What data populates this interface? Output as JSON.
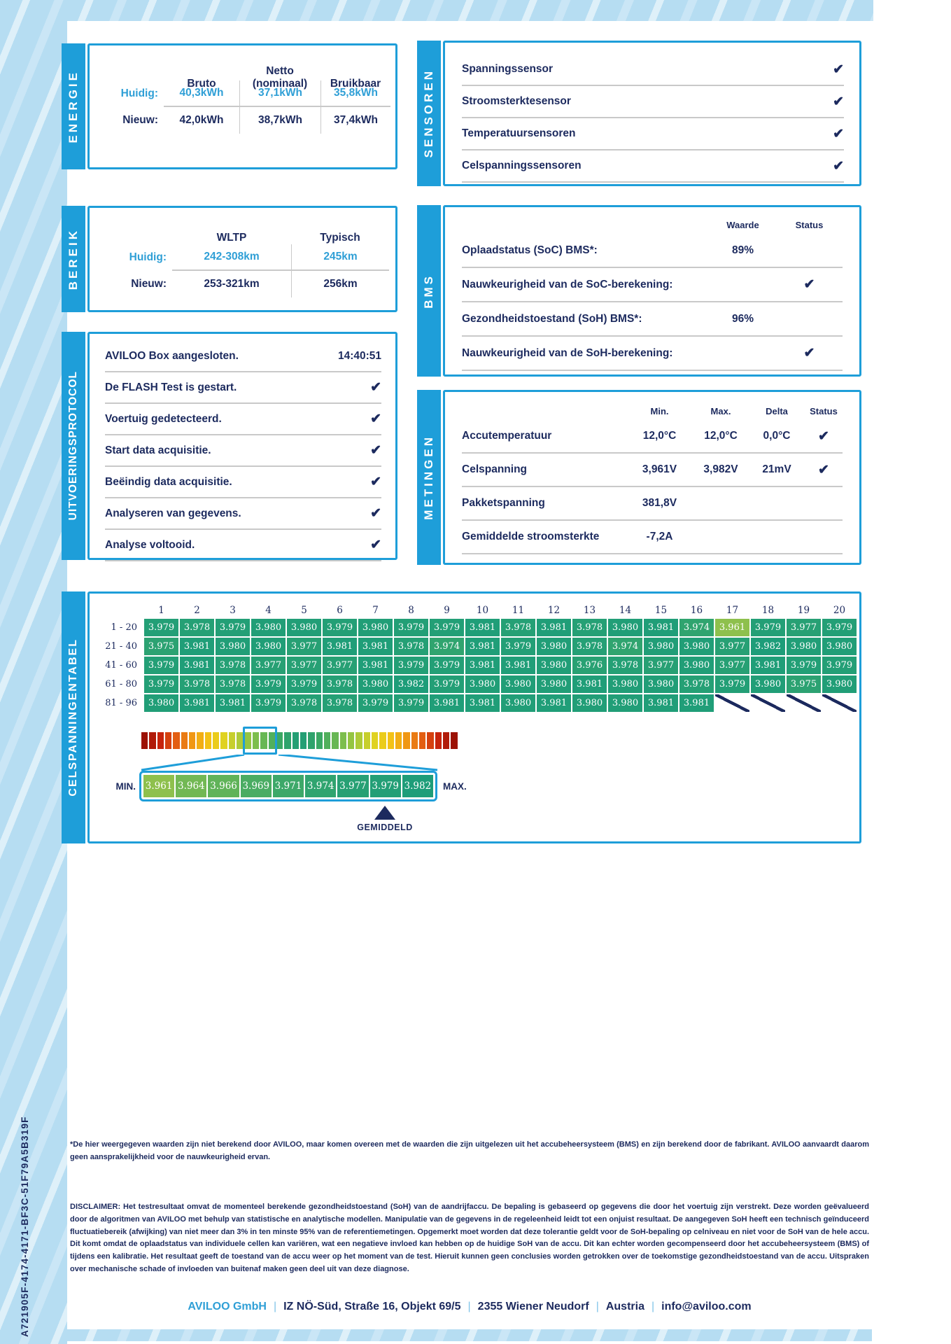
{
  "page": {
    "report_id": "A721905F-4174-4171-BF3C-51F79A5B319F",
    "glyphs": {
      "check": "✔"
    },
    "colors": {
      "accent_blue": "#1e9ed9",
      "navy_text": "#1c2a5e",
      "value_blue": "#2f9fd6",
      "light_blue_band": "#b6ddf2",
      "cell_green_low": "#8ec04d",
      "cell_green_high": "#1e9d79",
      "gradient_end_red": "#9c1205"
    },
    "energie": {
      "tab": "ENERGIE",
      "headers": [
        "Bruto",
        "Netto\n(nominaal)",
        "Bruikbaar"
      ],
      "rows": [
        {
          "label": "Huidig:",
          "values": [
            "40,3kWh",
            "37,1kWh",
            "35,8kWh"
          ]
        },
        {
          "label": "Nieuw:",
          "values": [
            "42,0kWh",
            "38,7kWh",
            "37,4kWh"
          ]
        }
      ]
    },
    "bereik": {
      "tab": "BEREIK",
      "headers": [
        "WLTP",
        "Typisch"
      ],
      "rows": [
        {
          "label": "Huidig:",
          "values": [
            "242-308km",
            "245km"
          ]
        },
        {
          "label": "Nieuw:",
          "values": [
            "253-321km",
            "256km"
          ]
        }
      ]
    },
    "protocol": {
      "tab": "UITVOERINGSPROTOCOL",
      "items": [
        {
          "label": "AVILOO Box aangesloten.",
          "time": "14:40:51"
        },
        {
          "label": "De FLASH Test is gestart.",
          "check": true
        },
        {
          "label": "Voertuig gedetecteerd.",
          "check": true
        },
        {
          "label": "Start data acquisitie.",
          "check": true
        },
        {
          "label": "Beëindig data acquisitie.",
          "check": true
        },
        {
          "label": "Analyseren van gegevens.",
          "check": true
        },
        {
          "label": "Analyse voltooid.",
          "check": true
        }
      ]
    },
    "sensoren": {
      "tab": "SENSOREN",
      "items": [
        {
          "label": "Spanningssensor",
          "check": true
        },
        {
          "label": "Stroomsterktesensor",
          "check": true
        },
        {
          "label": "Temperatuursensoren",
          "check": true
        },
        {
          "label": "Celspanningssensoren",
          "check": true
        }
      ]
    },
    "bms": {
      "tab": "BMS",
      "headers": {
        "waarde": "Waarde",
        "status": "Status"
      },
      "rows": [
        {
          "label": "Oplaadstatus (SoC) BMS*:",
          "waarde": "89%"
        },
        {
          "label": "Nauwkeurigheid van de SoC-berekening:",
          "check": true
        },
        {
          "label": "Gezondheidstoestand (SoH) BMS*:",
          "waarde": "96%"
        },
        {
          "label": "Nauwkeurigheid van de SoH-berekening:",
          "check": true
        }
      ]
    },
    "metingen": {
      "tab": "METINGEN",
      "headers": [
        "Min.",
        "Max.",
        "Delta",
        "Status"
      ],
      "rows": [
        {
          "label": "Accutemperatuur",
          "min": "12,0°C",
          "max": "12,0°C",
          "delta": "0,0°C",
          "check": true
        },
        {
          "label": "Celspanning",
          "min": "3,961V",
          "max": "3,982V",
          "delta": "21mV",
          "check": true
        },
        {
          "label": "Pakketspanning",
          "min": "381,8V"
        },
        {
          "label": "Gemiddelde stroomsterkte",
          "min": "-7,2A"
        }
      ]
    },
    "celtabel": {
      "tab": "CELSPANNINGENTABEL",
      "columns": [
        "1",
        "2",
        "3",
        "4",
        "5",
        "6",
        "7",
        "8",
        "9",
        "10",
        "11",
        "12",
        "13",
        "14",
        "15",
        "16",
        "17",
        "18",
        "19",
        "20"
      ],
      "voltage_min": 3.961,
      "voltage_max": 3.982,
      "rows": [
        {
          "label": "1 - 20",
          "values": [
            "3.979",
            "3.978",
            "3.979",
            "3.980",
            "3.980",
            "3.979",
            "3.980",
            "3.979",
            "3.979",
            "3.981",
            "3.978",
            "3.981",
            "3.978",
            "3.980",
            "3.981",
            "3.974",
            "3.961",
            "3.979",
            "3.977",
            "3.979"
          ]
        },
        {
          "label": "21 - 40",
          "values": [
            "3.975",
            "3.981",
            "3.980",
            "3.980",
            "3.977",
            "3.981",
            "3.981",
            "3.978",
            "3.974",
            "3.981",
            "3.979",
            "3.980",
            "3.978",
            "3.974",
            "3.980",
            "3.980",
            "3.977",
            "3.982",
            "3.980",
            "3.980"
          ]
        },
        {
          "label": "41 - 60",
          "values": [
            "3.979",
            "3.981",
            "3.978",
            "3.977",
            "3.977",
            "3.977",
            "3.981",
            "3.979",
            "3.979",
            "3.981",
            "3.981",
            "3.980",
            "3.976",
            "3.978",
            "3.977",
            "3.980",
            "3.977",
            "3.981",
            "3.979",
            "3.979"
          ]
        },
        {
          "label": "61 - 80",
          "values": [
            "3.979",
            "3.978",
            "3.978",
            "3.979",
            "3.979",
            "3.978",
            "3.980",
            "3.982",
            "3.979",
            "3.980",
            "3.980",
            "3.980",
            "3.981",
            "3.980",
            "3.980",
            "3.978",
            "3.979",
            "3.980",
            "3.975",
            "3.980"
          ]
        },
        {
          "label": "81 - 96",
          "values": [
            "3.980",
            "3.981",
            "3.981",
            "3.979",
            "3.978",
            "3.978",
            "3.979",
            "3.979",
            "3.981",
            "3.981",
            "3.980",
            "3.981",
            "3.980",
            "3.980",
            "3.981",
            "3.981",
            null,
            null,
            null,
            null
          ]
        }
      ],
      "gradient_segments": 40,
      "scale": {
        "min_label": "MIN.",
        "max_label": "MAX.",
        "values": [
          "3.961",
          "3.964",
          "3.966",
          "3.969",
          "3.971",
          "3.974",
          "3.977",
          "3.979",
          "3.982"
        ],
        "pointer_index": 7,
        "pointer_label": "GEMIDDELD"
      }
    },
    "footnote": "*De hier weergegeven waarden zijn niet berekend door AVILOO, maar komen overeen met de waarden die zijn uitgelezen uit het accubeheersysteem (BMS) en zijn berekend door de fabrikant. AVILOO aanvaardt daarom geen aansprakelijkheid voor de nauwkeurigheid ervan.",
    "disclaimer_label": "DISCLAIMER:",
    "disclaimer": " Het testresultaat omvat de momenteel berekende gezondheidstoestand (SoH) van de aandrijfaccu. De bepaling is gebaseerd op gegevens die door het voertuig zijn verstrekt. Deze worden geëvalueerd door de algoritmen van AVILOO met behulp van statistische en analytische modellen. Manipulatie van de gegevens in de regeleenheid leidt tot een onjuist resultaat. De aangegeven SoH heeft een technisch geïnduceerd fluctuatiebereik (afwijking) van niet meer dan 3% in ten minste 95% van de referentiemetingen. Opgemerkt moet worden dat deze tolerantie geldt voor de SoH-bepaling op celniveau en niet voor de SoH van de hele accu. Dit komt omdat de oplaadstatus van individuele cellen kan variëren, wat een negatieve invloed kan hebben op de huidige SoH van de accu. Dit kan echter worden gecompenseerd door het accubeheersysteem (BMS) of tijdens een kalibratie. Het resultaat geeft de toestand van de accu weer op het moment van de test. Hieruit kunnen geen conclusies worden getrokken over de toekomstige gezondheidstoestand van de accu. Uitspraken over mechanische schade of invloeden van buitenaf maken geen deel uit van deze diagnose.",
    "footer": {
      "company": "AVILOO GmbH",
      "parts": [
        "IZ NÖ-Süd, Straße 16, Objekt 69/5",
        "2355 Wiener Neudorf",
        "Austria",
        "info@aviloo.com"
      ],
      "separator": "|"
    }
  }
}
